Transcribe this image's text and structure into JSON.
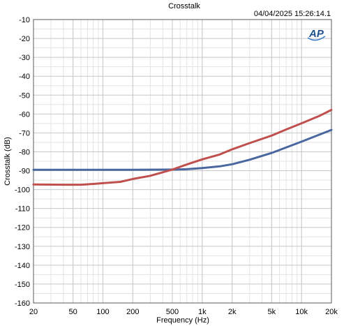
{
  "chart_data": {
    "type": "line",
    "title": "Crosstalk",
    "timestamp": "04/04/2025 15:26:14.1",
    "logo_text": "AP",
    "xlabel": "Frequency (Hz)",
    "ylabel": "Crosstalk (dB)",
    "x_scale": "log",
    "xlim": [
      20,
      20000
    ],
    "ylim": [
      -160,
      -10
    ],
    "grid": true,
    "x_ticks": [
      {
        "value": 20,
        "label": "20"
      },
      {
        "value": 50,
        "label": "50"
      },
      {
        "value": 100,
        "label": "100"
      },
      {
        "value": 200,
        "label": "200"
      },
      {
        "value": 500,
        "label": "500"
      },
      {
        "value": 1000,
        "label": "1k"
      },
      {
        "value": 2000,
        "label": "2k"
      },
      {
        "value": 5000,
        "label": "5k"
      },
      {
        "value": 10000,
        "label": "10k"
      },
      {
        "value": 20000,
        "label": "20k"
      }
    ],
    "y_ticks": [
      -10,
      -20,
      -30,
      -40,
      -50,
      -60,
      -70,
      -80,
      -90,
      -100,
      -110,
      -120,
      -130,
      -140,
      -150,
      -160
    ],
    "series": [
      {
        "color": "#4a67a0",
        "x": [
          20,
          50,
          100,
          200,
          500,
          700,
          1000,
          1500,
          2000,
          3000,
          5000,
          10000,
          20000
        ],
        "y": [
          -89.5,
          -89.5,
          -89.5,
          -89.5,
          -89.4,
          -89.2,
          -88.6,
          -87.7,
          -86.6,
          -84.2,
          -80.6,
          -74.6,
          -68.4
        ]
      },
      {
        "color": "#c0504d",
        "x": [
          20,
          40,
          60,
          80,
          100,
          150,
          200,
          300,
          500,
          700,
          1000,
          1500,
          2000,
          3000,
          5000,
          7000,
          10000,
          15000,
          20000
        ],
        "y": [
          -97.3,
          -97.4,
          -97.4,
          -97.0,
          -96.6,
          -95.9,
          -94.4,
          -92.7,
          -89.4,
          -86.7,
          -84.0,
          -81.4,
          -78.7,
          -75.4,
          -71.4,
          -68.2,
          -64.9,
          -61.1,
          -57.8
        ]
      }
    ]
  }
}
